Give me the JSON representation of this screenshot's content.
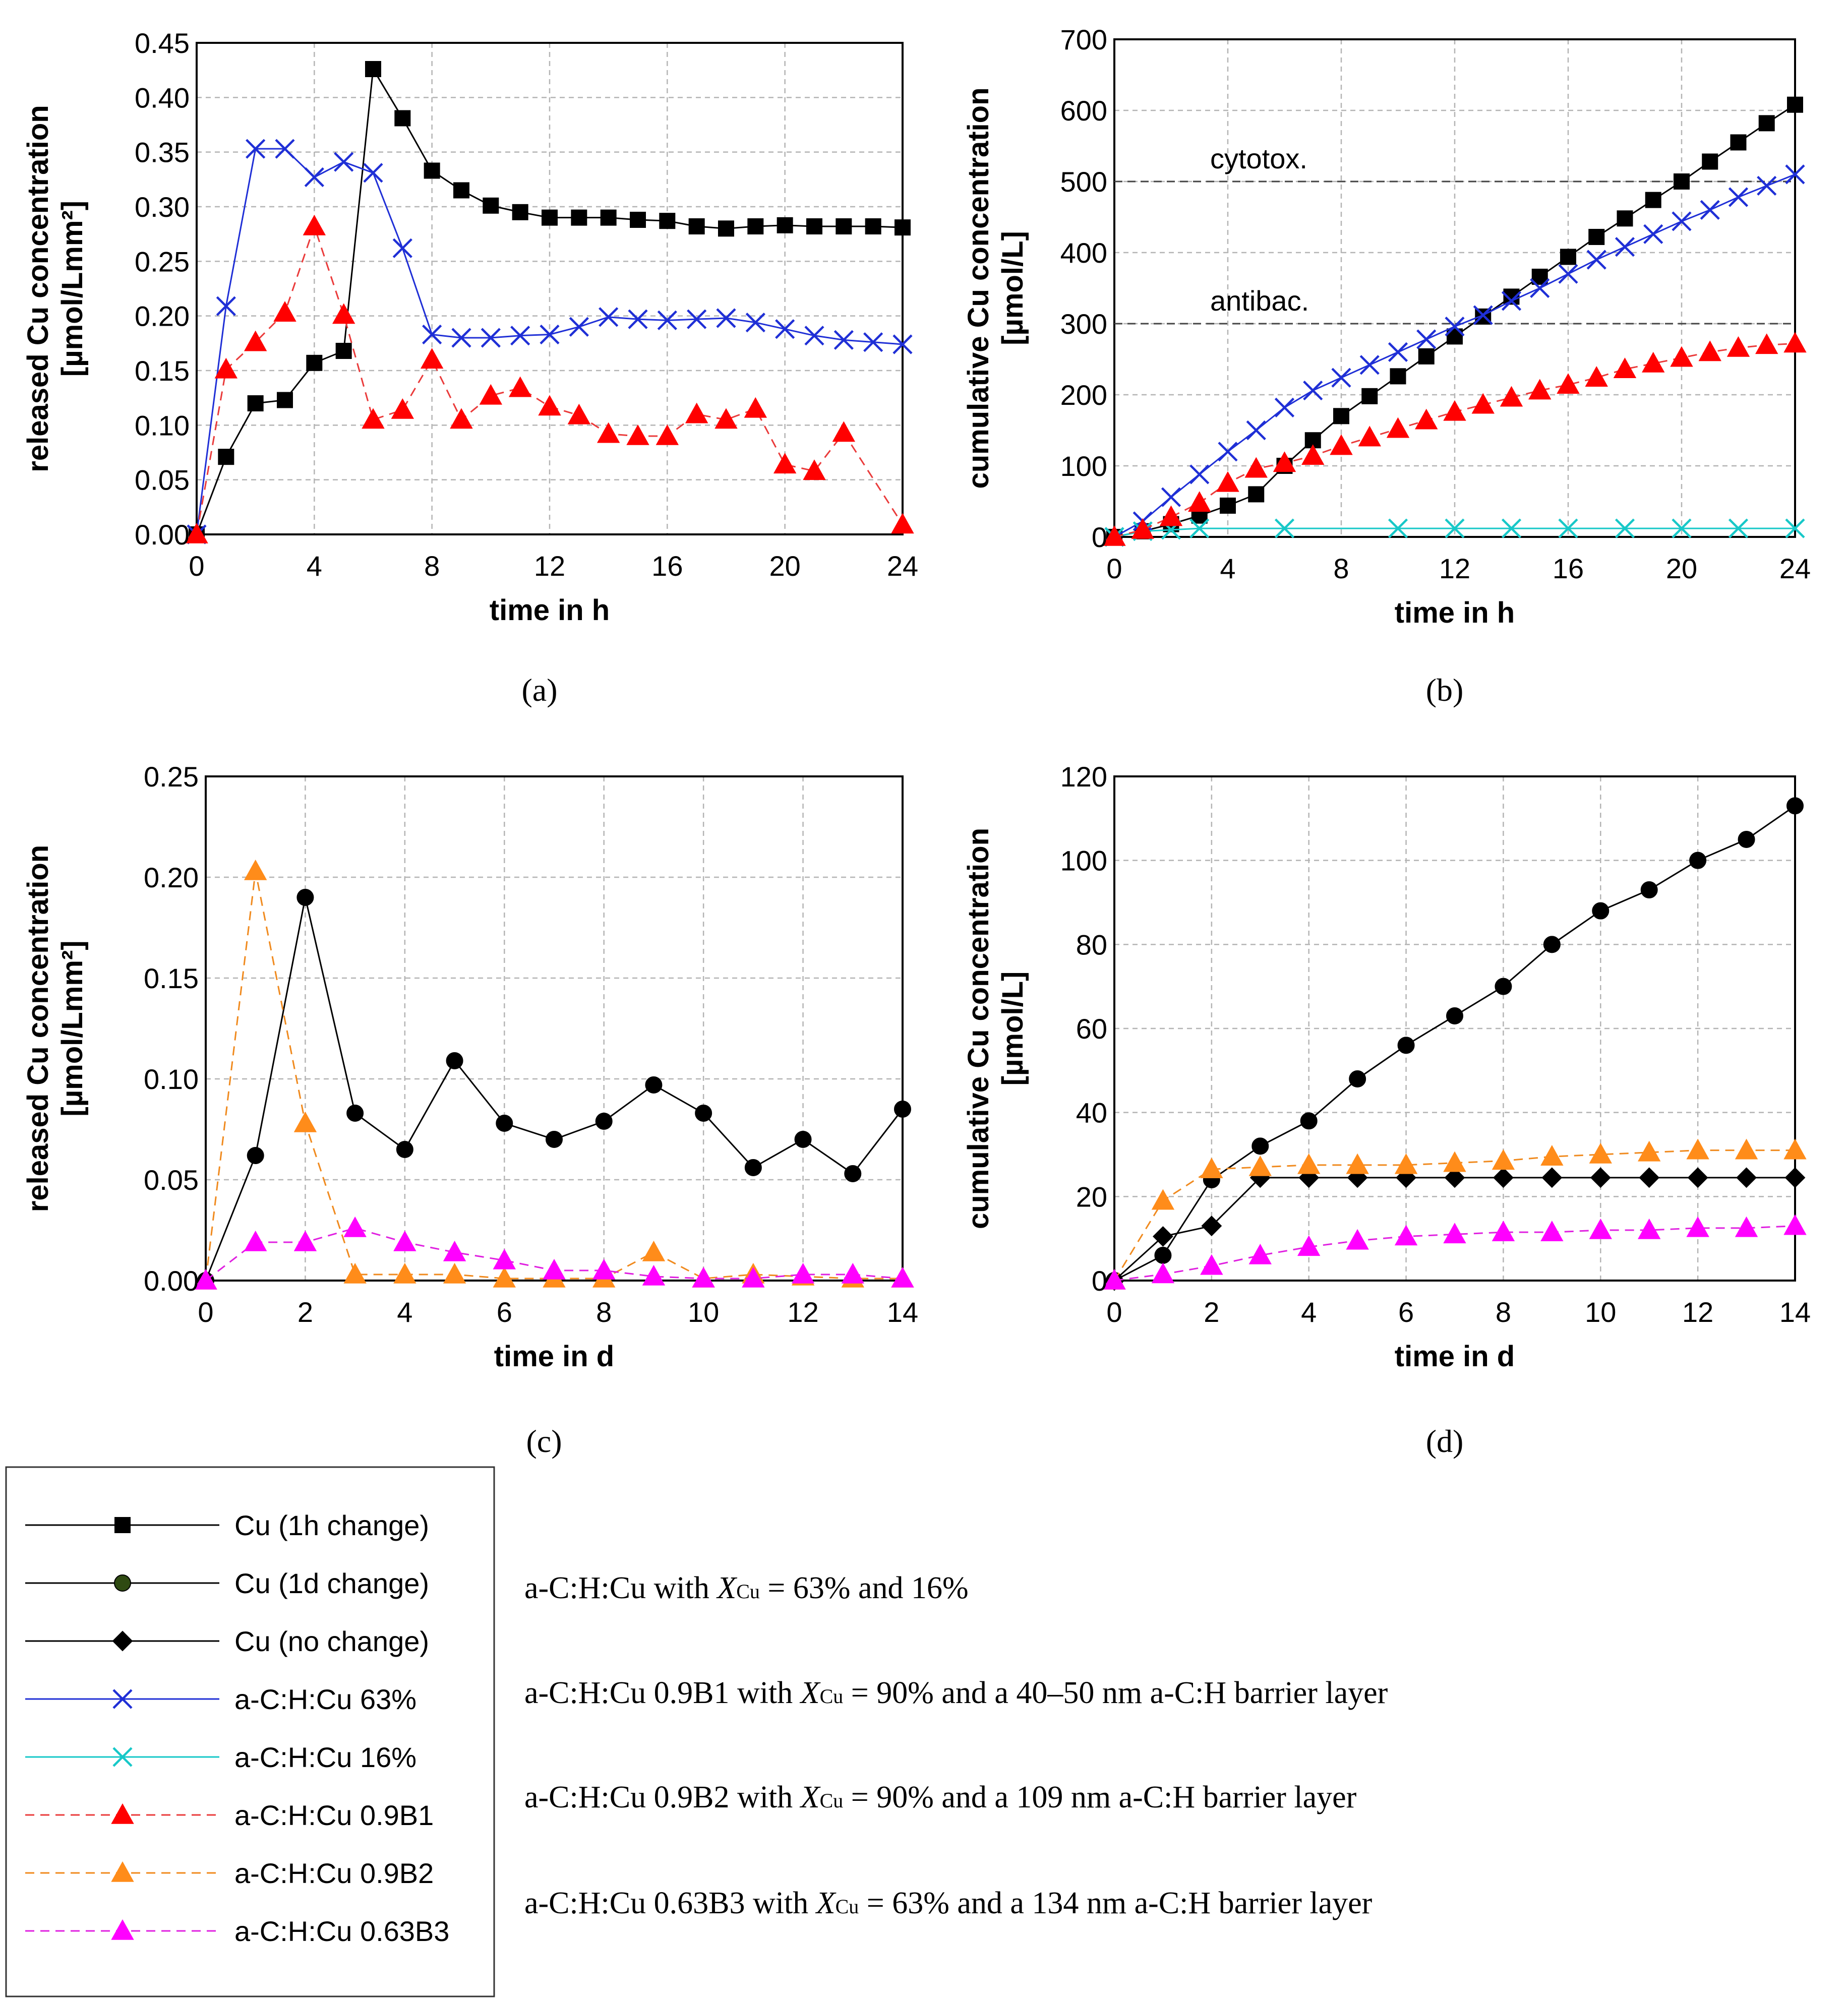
{
  "chart_data": [
    {
      "type": "line",
      "panel": "a",
      "label": "(a)",
      "xlabel": "time in h",
      "ylabel": "released Cu concentration [µmol/Lmm²]",
      "xlim": [
        0,
        24
      ],
      "ylim": [
        0,
        0.45
      ],
      "xticks": [
        0,
        4,
        8,
        12,
        16,
        20,
        24
      ],
      "yticks": [
        0.0,
        0.05,
        0.1,
        0.15,
        0.2,
        0.25,
        0.3,
        0.35,
        0.4,
        0.45
      ],
      "ytick_labels": [
        "0.00",
        "0.05",
        "0.10",
        "0.15",
        "0.20",
        "0.25",
        "0.30",
        "0.35",
        "0.40",
        "0.45"
      ],
      "grid": true,
      "series": [
        {
          "name": "Cu (1h change)",
          "style": "cu1h",
          "x": [
            0,
            1,
            2,
            3,
            4,
            5,
            6,
            7,
            8,
            9,
            10,
            11,
            12,
            13,
            14,
            15,
            16,
            17,
            18,
            19,
            20,
            21,
            22,
            23,
            24
          ],
          "values": [
            0,
            0.071,
            0.12,
            0.123,
            0.157,
            0.168,
            0.426,
            0.381,
            0.333,
            0.315,
            0.301,
            0.295,
            0.29,
            0.29,
            0.29,
            0.288,
            0.287,
            0.282,
            0.28,
            0.282,
            0.283,
            0.282,
            0.282,
            0.282,
            0.281
          ]
        },
        {
          "name": "a-C:H:Cu 63%",
          "style": "ach63",
          "x": [
            0,
            1,
            2,
            3,
            4,
            5,
            6,
            7,
            8,
            9,
            10,
            11,
            12,
            13,
            14,
            15,
            16,
            17,
            18,
            19,
            20,
            21,
            22,
            23,
            24
          ],
          "values": [
            0,
            0.209,
            0.353,
            0.353,
            0.327,
            0.341,
            0.331,
            0.262,
            0.183,
            0.18,
            0.18,
            0.182,
            0.183,
            0.19,
            0.199,
            0.197,
            0.196,
            0.197,
            0.198,
            0.194,
            0.188,
            0.182,
            0.178,
            0.176,
            0.174
          ]
        },
        {
          "name": "a-C:H:Cu 0.9B1",
          "style": "b1",
          "x": [
            0,
            1,
            2,
            3,
            4,
            5,
            6,
            7,
            8,
            9,
            10,
            11,
            12,
            13,
            14,
            15,
            16,
            17,
            18,
            19,
            20,
            21,
            22,
            23,
            24
          ],
          "values": [
            0,
            0.151,
            0.176,
            0.203,
            0.282,
            0.201,
            0.105,
            0.114,
            0.16,
            0.105,
            0.127,
            0.134,
            0.117,
            0.109,
            0.092,
            0.09,
            0.09,
            0.11,
            0.105,
            0.115,
            0.064,
            0.058,
            0.093,
            null,
            0.009
          ]
        }
      ]
    },
    {
      "type": "line",
      "panel": "b",
      "label": "(b)",
      "xlabel": "time in h",
      "ylabel": "cumulative Cu concentration [µmol/L]",
      "xlim": [
        0,
        24
      ],
      "ylim": [
        0,
        700
      ],
      "xticks": [
        0,
        4,
        8,
        12,
        16,
        20,
        24
      ],
      "yticks": [
        0,
        100,
        200,
        300,
        400,
        500,
        600,
        700
      ],
      "ytick_labels": [
        "0",
        "100",
        "200",
        "300",
        "400",
        "500",
        "600",
        "700"
      ],
      "grid": true,
      "reference_lines": [
        {
          "label": "cytotox.",
          "y": 500
        },
        {
          "label": "antibac.",
          "y": 300
        }
      ],
      "series": [
        {
          "name": "Cu (1h change)",
          "style": "cu1h",
          "x": [
            0,
            1,
            2,
            3,
            4,
            5,
            6,
            7,
            8,
            9,
            10,
            11,
            12,
            13,
            14,
            15,
            16,
            17,
            18,
            19,
            20,
            21,
            22,
            23,
            24
          ],
          "values": [
            0,
            8,
            18,
            30,
            44,
            60,
            100,
            136,
            170,
            198,
            226,
            254,
            282,
            310,
            338,
            366,
            394,
            422,
            448,
            474,
            500,
            528,
            555,
            582,
            608
          ]
        },
        {
          "name": "a-C:H:Cu 63%",
          "style": "ach63",
          "x": [
            0,
            1,
            2,
            3,
            4,
            5,
            6,
            7,
            8,
            9,
            10,
            11,
            12,
            13,
            14,
            15,
            16,
            17,
            18,
            19,
            20,
            21,
            22,
            23,
            24
          ],
          "values": [
            0,
            22,
            56,
            88,
            120,
            150,
            182,
            206,
            224,
            242,
            260,
            278,
            296,
            312,
            332,
            350,
            370,
            390,
            408,
            426,
            444,
            460,
            478,
            494,
            510
          ]
        },
        {
          "name": "a-C:H:Cu 16%",
          "style": "ach16",
          "x": [
            0,
            1,
            2,
            3,
            6,
            10,
            12,
            14,
            16,
            18,
            20,
            22,
            24
          ],
          "values": [
            0,
            8,
            10,
            12,
            12,
            12,
            12,
            12,
            12,
            12,
            12,
            12,
            12
          ]
        },
        {
          "name": "a-C:H:Cu 0.9B1",
          "style": "b1",
          "x": [
            0,
            1,
            2,
            3,
            4,
            5,
            6,
            7,
            8,
            9,
            10,
            11,
            12,
            13,
            14,
            15,
            16,
            17,
            18,
            19,
            20,
            21,
            22,
            23,
            24
          ],
          "values": [
            0,
            10,
            28,
            48,
            76,
            96,
            104,
            114,
            128,
            140,
            152,
            164,
            176,
            186,
            196,
            206,
            214,
            224,
            236,
            244,
            252,
            260,
            266,
            270,
            272
          ]
        }
      ]
    },
    {
      "type": "line",
      "panel": "c",
      "label": "(c)",
      "xlabel": "time in d",
      "ylabel": "released Cu concentration [µmol/Lmm²]",
      "xlim": [
        0,
        14
      ],
      "ylim": [
        0,
        0.25
      ],
      "xticks": [
        0,
        2,
        4,
        6,
        8,
        10,
        12,
        14
      ],
      "yticks": [
        0.0,
        0.05,
        0.1,
        0.15,
        0.2,
        0.25
      ],
      "ytick_labels": [
        "0.00",
        "0.05",
        "0.10",
        "0.15",
        "0.20",
        "0.25"
      ],
      "grid": true,
      "series": [
        {
          "name": "Cu (1d change)",
          "style": "cu1d",
          "x": [
            0,
            1,
            2,
            3,
            4,
            5,
            6,
            7,
            8,
            9,
            10,
            11,
            12,
            13,
            14
          ],
          "values": [
            0,
            0.062,
            0.19,
            0.083,
            0.065,
            0.109,
            0.078,
            0.07,
            0.079,
            0.097,
            0.083,
            0.056,
            0.07,
            0.053,
            0.085
          ]
        },
        {
          "name": "a-C:H:Cu 0.9B2",
          "style": "b2",
          "x": [
            0,
            1,
            2,
            3,
            4,
            5,
            6,
            7,
            8,
            9,
            10,
            11,
            12,
            13,
            14
          ],
          "values": [
            0,
            0.203,
            0.078,
            0.003,
            0.003,
            0.003,
            0.001,
            0.001,
            0.001,
            0.014,
            0.001,
            0.003,
            0.002,
            0.001,
            0.001
          ]
        },
        {
          "name": "a-C:H:Cu 0.63B3",
          "style": "b3",
          "x": [
            0,
            1,
            2,
            3,
            4,
            5,
            6,
            7,
            8,
            9,
            10,
            11,
            12,
            13,
            14
          ],
          "values": [
            0,
            0.019,
            0.019,
            0.026,
            0.019,
            0.014,
            0.01,
            0.005,
            0.005,
            0.002,
            0.001,
            0.001,
            0.003,
            0.003,
            0.001
          ]
        }
      ]
    },
    {
      "type": "line",
      "panel": "d",
      "label": "(d)",
      "xlabel": "time in d",
      "ylabel": "cumulative Cu concentration [µmol/L]",
      "xlim": [
        0,
        14
      ],
      "ylim": [
        0,
        120
      ],
      "xticks": [
        0,
        2,
        4,
        6,
        8,
        10,
        12,
        14
      ],
      "yticks": [
        0,
        20,
        40,
        60,
        80,
        100,
        120
      ],
      "ytick_labels": [
        "0",
        "20",
        "40",
        "60",
        "80",
        "100",
        "120"
      ],
      "grid": true,
      "series": [
        {
          "name": "Cu (1d change)",
          "style": "cu1d",
          "x": [
            0,
            1,
            2,
            3,
            4,
            5,
            6,
            7,
            8,
            9,
            10,
            11,
            12,
            13,
            14
          ],
          "values": [
            0,
            6,
            24,
            32,
            38,
            48,
            56,
            63,
            70,
            80,
            88,
            93,
            100,
            105,
            113
          ]
        },
        {
          "name": "Cu (no change)",
          "style": "cunc",
          "x": [
            0,
            1,
            2,
            3,
            4,
            5,
            6,
            7,
            8,
            9,
            10,
            11,
            12,
            13,
            14
          ],
          "values": [
            0,
            10.5,
            13,
            24.5,
            24.5,
            24.5,
            24.5,
            24.5,
            24.5,
            24.5,
            24.5,
            24.5,
            24.5,
            24.5,
            24.5
          ]
        },
        {
          "name": "a-C:H:Cu 0.9B2",
          "style": "b2",
          "x": [
            0,
            1,
            2,
            3,
            4,
            5,
            6,
            7,
            8,
            9,
            10,
            11,
            12,
            13,
            14
          ],
          "values": [
            0,
            19,
            26.5,
            27,
            27.5,
            27.5,
            27.5,
            28,
            28.5,
            29.5,
            30,
            30.5,
            31,
            31,
            31
          ]
        },
        {
          "name": "a-C:H:Cu 0.63B3",
          "style": "b3",
          "x": [
            0,
            1,
            2,
            3,
            4,
            5,
            6,
            7,
            8,
            9,
            10,
            11,
            12,
            13,
            14
          ],
          "values": [
            0,
            1.5,
            3.5,
            6,
            8,
            9.5,
            10.5,
            11,
            11.5,
            11.5,
            12,
            12,
            12.5,
            12.5,
            13
          ]
        }
      ]
    }
  ],
  "legend": {
    "items": [
      {
        "label": "Cu (1h change)",
        "style": "cu1h"
      },
      {
        "label": "Cu (1d change)",
        "style": "cu1d"
      },
      {
        "label": "Cu (no change)",
        "style": "cunc"
      },
      {
        "label": "a-C:H:Cu 63%",
        "style": "ach63"
      },
      {
        "label": "a-C:H:Cu 16%",
        "style": "ach16"
      },
      {
        "label": "a-C:H:Cu 0.9B1",
        "style": "b1"
      },
      {
        "label": "a-C:H:Cu 0.9B2",
        "style": "b2"
      },
      {
        "label": "a-C:H:Cu 0.63B3",
        "style": "b3"
      }
    ]
  },
  "descriptions": [
    {
      "prefix": "a-C:H:Cu with ",
      "var": "X",
      "sub": "Cu",
      "suffix": " = 63% and 16%"
    },
    {
      "prefix": "a-C:H:Cu 0.9B1 with ",
      "var": "X",
      "sub": "Cu",
      "suffix": " = 90% and a 40–50 nm a-C:H barrier layer"
    },
    {
      "prefix": "a-C:H:Cu 0.9B2 with ",
      "var": "X",
      "sub": "Cu",
      "suffix": " = 90% and a 109 nm a-C:H barrier layer"
    },
    {
      "prefix": "a-C:H:Cu 0.63B3 with ",
      "var": "X",
      "sub": "Cu",
      "suffix": " = 63% and a 134 nm a-C:H barrier layer"
    }
  ],
  "styles": {
    "cu1h": {
      "line": "#000000",
      "fill": "#000000",
      "marker": "square",
      "dash": ""
    },
    "cu1d": {
      "line": "#000000",
      "fill": "#000000",
      "marker": "circle",
      "dash": "",
      "legend_fill": "#2f4a12"
    },
    "cunc": {
      "line": "#000000",
      "fill": "#000000",
      "marker": "diamond",
      "dash": ""
    },
    "ach63": {
      "line": "#1f2fd6",
      "fill": "none",
      "marker": "x",
      "dash": ""
    },
    "ach16": {
      "line": "#17c8c8",
      "fill": "none",
      "marker": "x",
      "dash": ""
    },
    "b1": {
      "line": "#ea3b3b",
      "fill": "#ff0000",
      "marker": "triangle",
      "dash": "18 12"
    },
    "b2": {
      "line": "#f08a1e",
      "fill": "#ff8c1a",
      "marker": "triangle",
      "dash": "18 12"
    },
    "b3": {
      "line": "#e020e0",
      "fill": "#ff00ff",
      "marker": "triangle",
      "dash": "18 12"
    }
  }
}
